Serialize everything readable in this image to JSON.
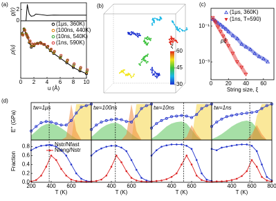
{
  "chart_data": [
    {
      "type": "line",
      "panel": "(a)",
      "ylabel": "g(r)",
      "xlim": [
        0,
        10
      ],
      "ylim": [
        0,
        3.2
      ],
      "yticks": [
        0,
        2
      ],
      "xticks": [],
      "x": [
        0,
        0.8,
        0.9,
        1.0,
        1.1,
        1.3,
        1.6,
        2.0,
        2.3,
        3,
        4,
        5,
        6,
        7,
        8,
        9,
        10
      ],
      "series": [
        {
          "color": "#000000",
          "values": [
            0,
            0,
            1.5,
            2.9,
            2.2,
            1.2,
            0.8,
            0.9,
            1.2,
            1.1,
            0.95,
            1.02,
            1,
            1,
            1,
            1,
            1
          ]
        }
      ]
    },
    {
      "type": "line",
      "ylabel": "ρ(u)",
      "xlabel": "u (Å)",
      "xlim": [
        0,
        10
      ],
      "xticks": [
        0,
        2,
        4,
        6,
        8,
        10
      ],
      "ylim": [
        0.002,
        10
      ],
      "ylog": true,
      "yticks": [],
      "x": [
        0.2,
        0.5,
        0.8,
        1.0,
        1.3,
        1.6,
        2.0,
        2.5,
        3.0,
        3.5,
        4.0,
        4.5,
        5,
        6,
        7,
        8,
        9,
        10
      ],
      "series": [
        {
          "name": "(1μs, 360K)",
          "color": "#000000",
          "values": [
            1.5,
            3,
            1.5,
            1.0,
            0.4,
            0.2,
            0.25,
            0.35,
            0.4,
            0.3,
            0.2,
            0.12,
            0.08,
            0.04,
            0.02,
            0.01,
            0.006,
            0.004
          ]
        },
        {
          "name": "(100ns, 440K)",
          "color": "#e07b00",
          "values": [
            1.4,
            2.8,
            1.4,
            0.9,
            0.45,
            0.25,
            0.28,
            0.36,
            0.38,
            0.3,
            0.21,
            0.13,
            0.09,
            0.045,
            0.025,
            0.013,
            0.008,
            0.005
          ]
        },
        {
          "name": "(10ns, 540K)",
          "color": "#2ca02c",
          "values": [
            1.3,
            2.6,
            1.3,
            0.85,
            0.5,
            0.3,
            0.3,
            0.35,
            0.36,
            0.3,
            0.22,
            0.14,
            0.1,
            0.05,
            0.028,
            0.015,
            0.009,
            0.006
          ]
        },
        {
          "name": "(1ns, 590K)",
          "color": "#d62728",
          "values": [
            1.2,
            2.4,
            1.2,
            0.8,
            0.5,
            0.32,
            0.32,
            0.34,
            0.35,
            0.3,
            0.23,
            0.15,
            0.11,
            0.06,
            0.03,
            0.017,
            0.01,
            0.007
          ]
        }
      ]
    },
    {
      "type": "strings",
      "panel": "(b)",
      "colorbar_label": "ξ",
      "clim": [
        30,
        60
      ],
      "cticks": [
        30,
        45,
        60
      ],
      "colors": [
        "#1a2fd0",
        "#19b7e6",
        "#3cc13c",
        "#f2e619",
        "#e0291c"
      ]
    },
    {
      "type": "scatter",
      "panel": "(c)",
      "ylabel": "pξ",
      "xlabel": "String size, ξ",
      "xlim": [
        0,
        72
      ],
      "xticks": [
        0,
        20,
        40,
        60
      ],
      "ylim": [
        0.0001,
        1
      ],
      "ylog": true,
      "yticks": [
        {
          "value": 0.1,
          "label": "10⁻¹"
        },
        {
          "value": 0.001,
          "label": "10⁻³"
        }
      ],
      "series": [
        {
          "name": "(1μs, 360K)",
          "color": "#2233cc",
          "marker": "up",
          "x": [
            2,
            5,
            8,
            11,
            14,
            17,
            20,
            25,
            30,
            35,
            40,
            45,
            50,
            55,
            60,
            65
          ],
          "values": [
            0.25,
            0.2,
            0.15,
            0.12,
            0.09,
            0.07,
            0.05,
            0.03,
            0.02,
            0.01,
            0.007,
            0.005,
            0.003,
            0.002,
            0.0015,
            0.001
          ]
        },
        {
          "name": "(1ns, T=590)",
          "color": "#dd2222",
          "marker": "down",
          "x": [
            2,
            5,
            8,
            11,
            14,
            17,
            20,
            25,
            30,
            35,
            40
          ],
          "values": [
            0.3,
            0.17,
            0.09,
            0.05,
            0.028,
            0.015,
            0.008,
            0.003,
            0.001,
            0.0005,
            0.0002
          ]
        }
      ]
    },
    {
      "type": "relax",
      "panel": "(d)",
      "title": "tw=1μs",
      "ylabel": "E'' (GPa)",
      "ylabel2": "Fraction",
      "xlabel": "T (K)",
      "legend": [
        "Nstr/Nfast",
        "Nlong/Nstr"
      ],
      "xlim": [
        200,
        800
      ],
      "xticks": [
        200,
        400,
        600
      ],
      "ylim": [
        0,
        1.25
      ],
      "y2lim": [
        0,
        0.95
      ],
      "y2ticks": [
        {
          "value": 0,
          "label": "0.0"
        },
        {
          "value": 0.2,
          "label": "0.2"
        },
        {
          "value": 0.4,
          "label": "0.4"
        },
        {
          "value": 0.6,
          "label": "0.6"
        },
        {
          "value": 0.8,
          "label": "0.8"
        }
      ],
      "peak_T": 380,
      "T": [
        200,
        250,
        300,
        350,
        400,
        450,
        500,
        550,
        600,
        650,
        700,
        750,
        800
      ],
      "E": [
        0.3,
        0.45,
        0.58,
        0.62,
        0.6,
        0.55,
        0.5,
        0.5,
        0.65,
        0.9,
        1.1,
        1.15,
        1.2
      ],
      "green": [
        0.15,
        0.3,
        0.45,
        0.53,
        0.55,
        0.5,
        0.4,
        0.28,
        0.15,
        0.05,
        0,
        0,
        0
      ],
      "orange": [
        0,
        0,
        0,
        0,
        0,
        0,
        0,
        0.1,
        1.2,
        0.3,
        0,
        0,
        0
      ],
      "yellow": [
        0,
        0,
        0,
        0,
        0,
        0,
        0,
        0,
        0,
        1.2,
        1.2,
        1.2,
        1.2
      ],
      "frac_str": [
        0.72,
        0.78,
        0.82,
        0.83,
        0.83,
        0.8,
        0.72,
        0.6,
        0.4,
        0.2,
        0.08,
        0.03,
        0.02
      ],
      "frac_long": [
        0.02,
        0.05,
        0.15,
        0.35,
        0.6,
        0.5,
        0.3,
        0.15,
        0.06,
        0.03,
        0.02,
        0.01,
        0.01
      ]
    },
    {
      "type": "relax",
      "title": "tw=100ns",
      "xlabel": "T (K)",
      "xlim": [
        200,
        800
      ],
      "xticks": [
        400,
        600
      ],
      "ylim": [
        0,
        1.25
      ],
      "y2lim": [
        0,
        0.95
      ],
      "peak_T": 440,
      "T": [
        200,
        250,
        300,
        350,
        400,
        450,
        500,
        550,
        600,
        650,
        700,
        750,
        800
      ],
      "E": [
        0.35,
        0.5,
        0.6,
        0.65,
        0.68,
        0.7,
        0.68,
        0.62,
        0.6,
        0.8,
        1.05,
        1.15,
        1.2
      ],
      "green": [
        0.1,
        0.25,
        0.4,
        0.5,
        0.56,
        0.58,
        0.5,
        0.35,
        0.2,
        0.08,
        0,
        0,
        0
      ],
      "orange": [
        0,
        0,
        0,
        0,
        0,
        0,
        0,
        0.2,
        1.2,
        0.3,
        0,
        0,
        0
      ],
      "yellow": [
        0,
        0,
        0,
        0,
        0,
        0,
        0,
        0,
        0,
        1.2,
        1.2,
        1.2,
        1.2
      ],
      "frac_str": [
        0.6,
        0.7,
        0.76,
        0.8,
        0.82,
        0.82,
        0.78,
        0.7,
        0.5,
        0.28,
        0.1,
        0.04,
        0.02
      ],
      "frac_long": [
        0.02,
        0.03,
        0.06,
        0.15,
        0.35,
        0.6,
        0.45,
        0.25,
        0.1,
        0.04,
        0.02,
        0.01,
        0.01
      ]
    },
    {
      "type": "relax",
      "title": "tw=10ns",
      "xlabel": "T (K)",
      "xlim": [
        200,
        800
      ],
      "xticks": [
        400,
        600
      ],
      "ylim": [
        0,
        1.25
      ],
      "y2lim": [
        0,
        0.95
      ],
      "peak_T": 520,
      "T": [
        200,
        250,
        300,
        350,
        400,
        450,
        500,
        550,
        600,
        650,
        700,
        750,
        800
      ],
      "E": [
        0.4,
        0.55,
        0.65,
        0.72,
        0.78,
        0.8,
        0.82,
        0.8,
        0.75,
        0.85,
        1.05,
        1.15,
        1.2
      ],
      "green": [
        0.05,
        0.15,
        0.3,
        0.45,
        0.55,
        0.6,
        0.62,
        0.55,
        0.35,
        0.12,
        0,
        0,
        0
      ],
      "orange": [
        0,
        0,
        0,
        0,
        0,
        0,
        0,
        0.1,
        0.5,
        0.2,
        0,
        0,
        0
      ],
      "yellow": [
        0,
        0,
        0,
        0,
        0,
        0,
        0,
        0,
        0,
        1.2,
        1.2,
        1.2,
        1.2
      ],
      "frac_str": [
        0.6,
        0.72,
        0.8,
        0.83,
        0.85,
        0.85,
        0.85,
        0.82,
        0.75,
        0.5,
        0.2,
        0.06,
        0.03
      ],
      "frac_long": [
        0.02,
        0.03,
        0.04,
        0.07,
        0.12,
        0.2,
        0.4,
        0.6,
        0.4,
        0.15,
        0.05,
        0.02,
        0.01
      ]
    },
    {
      "type": "relax",
      "title": "tw=1ns",
      "xlabel": "T (K)",
      "xlim": [
        200,
        800
      ],
      "xticks": [
        400,
        600,
        800
      ],
      "ylim": [
        0,
        1.25
      ],
      "y2lim": [
        0,
        0.95
      ],
      "peak_T": 580,
      "T": [
        200,
        250,
        300,
        350,
        400,
        450,
        500,
        550,
        600,
        650,
        700,
        750,
        800
      ],
      "E": [
        0.45,
        0.6,
        0.7,
        0.78,
        0.82,
        0.85,
        0.88,
        0.9,
        0.92,
        0.95,
        1.05,
        1.15,
        1.2
      ],
      "green": [
        0.03,
        0.1,
        0.2,
        0.32,
        0.45,
        0.55,
        0.62,
        0.65,
        0.6,
        0.4,
        0.1,
        0,
        0
      ],
      "orange": [
        0,
        0,
        0,
        0,
        0,
        0,
        0,
        0,
        0.2,
        0.5,
        0.2,
        0,
        0
      ],
      "yellow": [
        0,
        0,
        0,
        0,
        0,
        0,
        0,
        0,
        0,
        0.8,
        1.2,
        1.2,
        1.2
      ],
      "frac_str": [
        0.75,
        0.72,
        0.78,
        0.8,
        0.82,
        0.84,
        0.85,
        0.85,
        0.82,
        0.7,
        0.4,
        0.12,
        0.04
      ],
      "frac_long": [
        0.01,
        0.02,
        0.02,
        0.03,
        0.05,
        0.08,
        0.14,
        0.25,
        0.5,
        0.35,
        0.12,
        0.04,
        0.02
      ]
    }
  ]
}
